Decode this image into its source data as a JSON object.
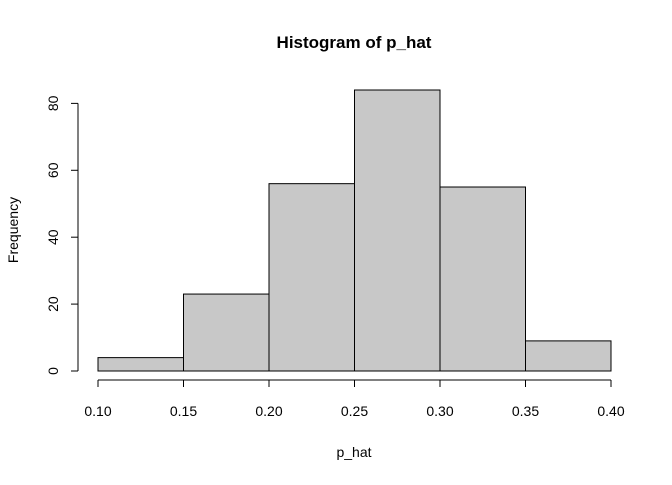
{
  "chart_data": {
    "type": "bar",
    "title": "Histogram of p_hat",
    "xlabel": "p_hat",
    "ylabel": "Frequency",
    "bins": [
      {
        "from": 0.1,
        "to": 0.15,
        "count": 4
      },
      {
        "from": 0.15,
        "to": 0.2,
        "count": 23
      },
      {
        "from": 0.2,
        "to": 0.25,
        "count": 56
      },
      {
        "from": 0.25,
        "to": 0.3,
        "count": 84
      },
      {
        "from": 0.3,
        "to": 0.35,
        "count": 55
      },
      {
        "from": 0.35,
        "to": 0.4,
        "count": 9
      }
    ],
    "x_ticks": [
      "0.10",
      "0.15",
      "0.20",
      "0.25",
      "0.30",
      "0.35",
      "0.40"
    ],
    "y_ticks": [
      "0",
      "20",
      "40",
      "60",
      "80"
    ],
    "xlim": [
      0.1,
      0.4
    ],
    "ylim": [
      0,
      84
    ],
    "grid": false,
    "bar_fill": "#c8c8c8",
    "bar_stroke": "#000000"
  }
}
